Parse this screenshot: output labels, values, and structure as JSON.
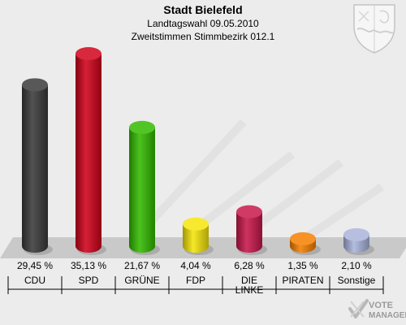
{
  "header": {
    "title": "Stadt Bielefeld",
    "subtitle1": "Landtagswahl 09.05.2010",
    "subtitle2": "Zweitstimmen Stimmbezirk 012.1"
  },
  "watermark": {
    "line1": "VOTE",
    "line2": "MANAGER"
  },
  "chart_data": {
    "type": "bar",
    "title": "Stadt Bielefeld",
    "subtitle": "Landtagswahl 09.05.2010 — Zweitstimmen Stimmbezirk 012.1",
    "categories": [
      "CDU",
      "SPD",
      "GRÜNE",
      "FDP",
      "DIE LINKE",
      "PIRATEN",
      "Sonstige"
    ],
    "category_lines": [
      [
        "CDU"
      ],
      [
        "SPD"
      ],
      [
        "GRÜNE"
      ],
      [
        "FDP"
      ],
      [
        "DIE",
        "LINKE"
      ],
      [
        "PIRATEN"
      ],
      [
        "Sonstige"
      ]
    ],
    "values": [
      29.45,
      35.13,
      21.67,
      4.04,
      6.28,
      1.35,
      2.1
    ],
    "value_labels": [
      "29,45 %",
      "35,13 %",
      "21,67 %",
      "4,04 %",
      "6,28 %",
      "1,35 %",
      "2,10 %"
    ],
    "colors": [
      "#3a3a3a",
      "#d0021b",
      "#33bb00",
      "#f5e50a",
      "#c8174a",
      "#f57f00",
      "#aab4dc"
    ],
    "xlabel": "",
    "ylabel": "",
    "ylim": [
      0,
      35.13
    ]
  }
}
